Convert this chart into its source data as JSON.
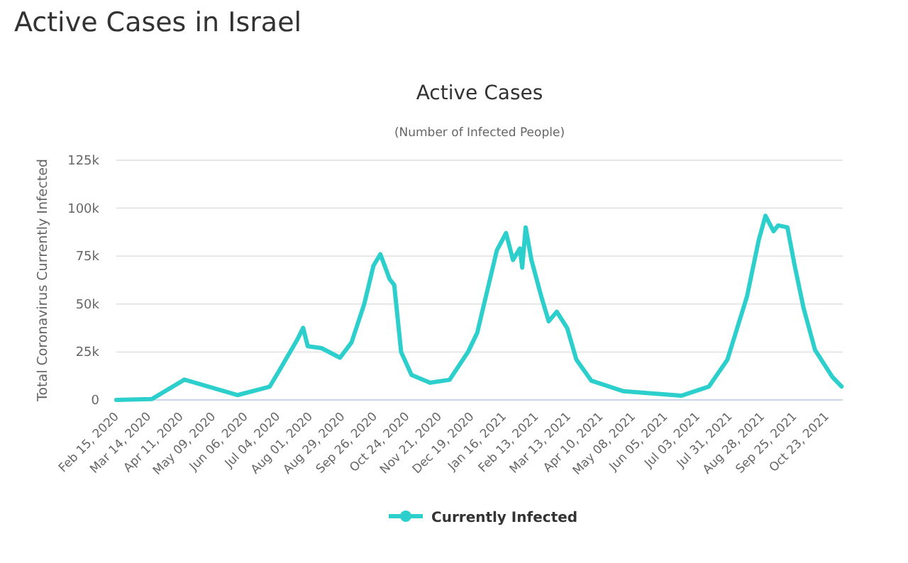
{
  "chart_data": {
    "type": "line",
    "title": "Active Cases",
    "subtitle": "(Number of Infected People)",
    "annotations": [
      "Active Cases in Israel"
    ],
    "ylabel": "Total Coronavirus Currently Infected",
    "series": [
      {
        "name": "Currently Infected",
        "color": "#2ccfcc",
        "x": [
          "2020-02-15",
          "2020-03-17",
          "2020-04-14",
          "2020-05-30",
          "2020-06-27",
          "2020-07-05",
          "2020-07-21",
          "2020-07-26",
          "2020-07-30",
          "2020-08-11",
          "2020-08-27",
          "2020-09-06",
          "2020-09-17",
          "2020-09-25",
          "2020-10-01",
          "2020-10-09",
          "2020-10-13",
          "2020-10-19",
          "2020-10-28",
          "2020-11-13",
          "2020-11-30",
          "2020-12-16",
          "2020-12-24",
          "2021-01-10",
          "2021-01-18",
          "2021-01-24",
          "2021-01-30",
          "2021-02-01",
          "2021-02-04",
          "2021-02-09",
          "2021-02-18",
          "2021-02-24",
          "2021-03-03",
          "2021-03-12",
          "2021-03-20",
          "2021-04-02",
          "2021-04-30",
          "2021-06-19",
          "2021-07-13",
          "2021-07-29",
          "2021-08-15",
          "2021-08-25",
          "2021-08-31",
          "2021-09-07",
          "2021-09-11",
          "2021-09-19",
          "2021-09-25",
          "2021-10-03",
          "2021-10-13",
          "2021-10-28",
          "2021-11-05"
        ],
        "values": [
          0,
          500,
          10600,
          2500,
          6900,
          15000,
          31500,
          37600,
          28000,
          27000,
          22000,
          30000,
          50000,
          70000,
          76000,
          63000,
          60000,
          25000,
          13000,
          9000,
          10500,
          25000,
          35000,
          78000,
          87000,
          73000,
          79000,
          69000,
          90000,
          73000,
          53000,
          41000,
          46000,
          37500,
          21000,
          10000,
          4500,
          2200,
          7000,
          21000,
          54000,
          83000,
          96000,
          88000,
          91000,
          90000,
          71000,
          48000,
          26000,
          12000,
          7000
        ]
      }
    ],
    "xlim": [
      "2020-02-15",
      "2021-11-06"
    ],
    "xticks": [
      {
        "value": "2020-02-15",
        "label": "Feb 15, 2020"
      },
      {
        "value": "2020-03-14",
        "label": "Mar 14, 2020"
      },
      {
        "value": "2020-04-11",
        "label": "Apr 11, 2020"
      },
      {
        "value": "2020-05-09",
        "label": "May 09, 2020"
      },
      {
        "value": "2020-06-06",
        "label": "Jun 06, 2020"
      },
      {
        "value": "2020-07-04",
        "label": "Jul 04, 2020"
      },
      {
        "value": "2020-08-01",
        "label": "Aug 01, 2020"
      },
      {
        "value": "2020-08-29",
        "label": "Aug 29, 2020"
      },
      {
        "value": "2020-09-26",
        "label": "Sep 26, 2020"
      },
      {
        "value": "2020-10-24",
        "label": "Oct 24, 2020"
      },
      {
        "value": "2020-11-21",
        "label": "Nov 21, 2020"
      },
      {
        "value": "2020-12-19",
        "label": "Dec 19, 2020"
      },
      {
        "value": "2021-01-16",
        "label": "Jan 16, 2021"
      },
      {
        "value": "2021-02-13",
        "label": "Feb 13, 2021"
      },
      {
        "value": "2021-03-13",
        "label": "Mar 13, 2021"
      },
      {
        "value": "2021-04-10",
        "label": "Apr 10, 2021"
      },
      {
        "value": "2021-05-08",
        "label": "May 08, 2021"
      },
      {
        "value": "2021-06-05",
        "label": "Jun 05, 2021"
      },
      {
        "value": "2021-07-03",
        "label": "Jul 03, 2021"
      },
      {
        "value": "2021-07-31",
        "label": "Jul 31, 2021"
      },
      {
        "value": "2021-08-28",
        "label": "Aug 28, 2021"
      },
      {
        "value": "2021-09-25",
        "label": "Sep 25, 2021"
      },
      {
        "value": "2021-10-23",
        "label": "Oct 23, 2021"
      }
    ],
    "ylim": [
      0,
      125000
    ],
    "yticks": [
      0,
      {
        "value": 25000,
        "label": "25k"
      },
      {
        "value": 50000,
        "label": "50k"
      },
      {
        "value": 75000,
        "label": "75k"
      },
      {
        "value": 100000,
        "label": "100k"
      },
      {
        "value": 125000,
        "label": "125k"
      }
    ],
    "grid": "y",
    "legend": "bottom",
    "line_style": "solid"
  }
}
